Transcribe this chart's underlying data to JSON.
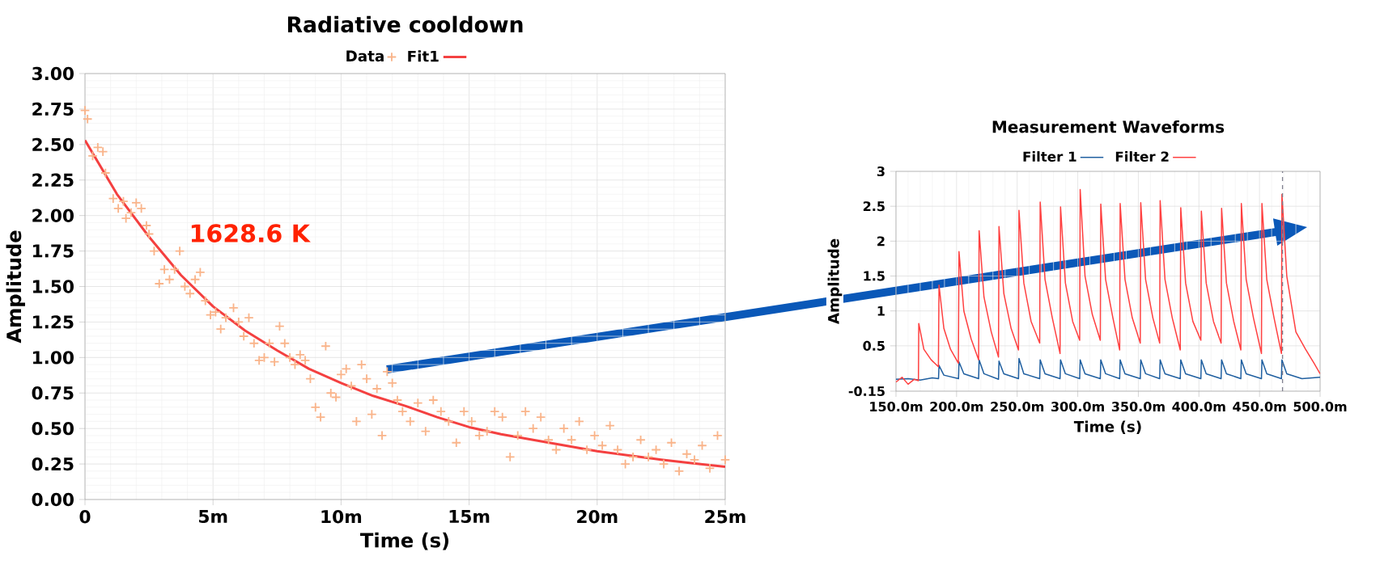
{
  "chart_data": [
    {
      "type": "line",
      "title": "Radiative cooldown",
      "xlabel": "Time (s)",
      "ylabel": "Amplitude",
      "grid": true,
      "legend": "top",
      "xlim": [
        0,
        25
      ],
      "ylim": [
        0,
        3
      ],
      "xticks": [
        0,
        {
          "value": 5,
          "label": "5m"
        },
        {
          "value": 10,
          "label": "10m"
        },
        {
          "value": 15,
          "label": "15m"
        },
        {
          "value": 20,
          "label": "20m"
        },
        {
          "value": 25,
          "label": "25m"
        }
      ],
      "yticks": [
        {
          "value": 0,
          "label": "0.00"
        },
        {
          "value": 0.25,
          "label": "0.25"
        },
        {
          "value": 0.5,
          "label": "0.50"
        },
        {
          "value": 0.75,
          "label": "0.75"
        },
        {
          "value": 1,
          "label": "1.00"
        },
        {
          "value": 1.25,
          "label": "1.25"
        },
        {
          "value": 1.5,
          "label": "1.50"
        },
        {
          "value": 1.75,
          "label": "1.75"
        },
        {
          "value": 2,
          "label": "2.00"
        },
        {
          "value": 2.25,
          "label": "2.25"
        },
        {
          "value": 2.5,
          "label": "2.50"
        },
        {
          "value": 2.75,
          "label": "2.75"
        },
        {
          "value": 3,
          "label": "3.00"
        }
      ],
      "annotations": [
        "1628.6 K"
      ],
      "series": [
        {
          "name": "Data",
          "type": "scatter",
          "marker": "cross",
          "color": "#f9b48a",
          "x": [
            0,
            0.1,
            0.3,
            0.5,
            0.7,
            0.8,
            1.1,
            1.3,
            1.5,
            1.6,
            1.8,
            2.0,
            2.2,
            2.4,
            2.5,
            2.7,
            2.9,
            3.1,
            3.3,
            3.5,
            3.7,
            3.9,
            4.1,
            4.3,
            4.5,
            4.7,
            4.9,
            5.1,
            5.3,
            5.5,
            5.8,
            6.0,
            6.2,
            6.4,
            6.6,
            6.8,
            7.0,
            7.2,
            7.4,
            7.6,
            7.8,
            8.0,
            8.2,
            8.4,
            8.6,
            8.8,
            9.0,
            9.2,
            9.4,
            9.6,
            9.8,
            10.0,
            10.2,
            10.4,
            10.6,
            10.8,
            11.0,
            11.2,
            11.4,
            11.6,
            11.8,
            12.0,
            12.2,
            12.4,
            12.7,
            13.0,
            13.3,
            13.6,
            13.9,
            14.2,
            14.5,
            14.8,
            15.1,
            15.4,
            15.7,
            16.0,
            16.3,
            16.6,
            16.9,
            17.2,
            17.5,
            17.8,
            18.1,
            18.4,
            18.7,
            19.0,
            19.3,
            19.6,
            19.9,
            20.2,
            20.5,
            20.8,
            21.1,
            21.4,
            21.7,
            22.0,
            22.3,
            22.6,
            22.9,
            23.2,
            23.5,
            23.8,
            24.1,
            24.4,
            24.7,
            25.0
          ],
          "values": [
            2.74,
            2.68,
            2.42,
            2.48,
            2.45,
            2.3,
            2.12,
            2.05,
            2.1,
            1.98,
            2.02,
            2.09,
            2.05,
            1.93,
            1.87,
            1.75,
            1.52,
            1.62,
            1.55,
            1.62,
            1.75,
            1.5,
            1.45,
            1.55,
            1.6,
            1.4,
            1.3,
            1.32,
            1.2,
            1.28,
            1.35,
            1.25,
            1.15,
            1.28,
            1.1,
            0.98,
            1.0,
            1.1,
            0.97,
            1.22,
            1.1,
            1.0,
            0.95,
            1.02,
            0.98,
            0.85,
            0.65,
            0.58,
            1.08,
            0.75,
            0.72,
            0.88,
            0.92,
            0.8,
            0.55,
            0.95,
            0.85,
            0.6,
            0.78,
            0.45,
            0.9,
            0.82,
            0.7,
            0.62,
            0.55,
            0.68,
            0.48,
            0.7,
            0.62,
            0.55,
            0.4,
            0.62,
            0.55,
            0.45,
            0.48,
            0.62,
            0.58,
            0.3,
            0.45,
            0.62,
            0.5,
            0.58,
            0.42,
            0.35,
            0.5,
            0.42,
            0.55,
            0.35,
            0.45,
            0.38,
            0.52,
            0.35,
            0.25,
            0.3,
            0.42,
            0.3,
            0.35,
            0.25,
            0.4,
            0.2,
            0.32,
            0.28,
            0.38,
            0.22,
            0.45,
            0.28
          ]
        },
        {
          "name": "Fit1",
          "type": "line",
          "color": "#f44040",
          "x": [
            0,
            1.25,
            2.5,
            3.75,
            5,
            6.25,
            7.5,
            8.75,
            10,
            11.25,
            12.5,
            13.75,
            15,
            16.25,
            17.5,
            18.75,
            20,
            21.25,
            22.5,
            23.75,
            25
          ],
          "values": [
            2.53,
            2.15,
            1.85,
            1.58,
            1.36,
            1.19,
            1.05,
            0.92,
            0.82,
            0.73,
            0.66,
            0.58,
            0.51,
            0.46,
            0.42,
            0.38,
            0.34,
            0.31,
            0.28,
            0.255,
            0.23
          ]
        }
      ]
    },
    {
      "type": "line",
      "title": "Measurement Waveforms",
      "xlabel": "Time (s)",
      "ylabel": "Amplitude",
      "grid": true,
      "legend": "top",
      "xlim": [
        150,
        500
      ],
      "ylim": [
        -0.15,
        3
      ],
      "xticks": [
        {
          "value": 150,
          "label": "150.0m"
        },
        {
          "value": 200,
          "label": "200.0m"
        },
        {
          "value": 250,
          "label": "250.0m"
        },
        {
          "value": 300,
          "label": "300.0m"
        },
        {
          "value": 350,
          "label": "350.0m"
        },
        {
          "value": 400,
          "label": "400.0m"
        },
        {
          "value": 450,
          "label": "450.0m"
        },
        {
          "value": 500,
          "label": "500.0m"
        }
      ],
      "yticks": [
        -0.15,
        0.5,
        1,
        1.5,
        2,
        2.5,
        3
      ],
      "ref_lines": [
        {
          "axis": "x",
          "value": 469,
          "color": "#808090",
          "line_style": "dashed"
        }
      ],
      "series": [
        {
          "name": "Filter 1",
          "color": "#1f5fa0",
          "x": [
            150,
            160,
            170,
            180,
            185.1,
            185.5,
            189.5,
            201.6,
            202.0,
            206.0,
            218.2,
            218.6,
            222.6,
            234.6,
            235.0,
            239.0,
            251.1,
            251.5,
            255.5,
            268.6,
            269.0,
            273.0,
            285.4,
            285.8,
            289.8,
            301.6,
            302.0,
            306.0,
            318.6,
            319.0,
            323.0,
            334.6,
            335.0,
            339.0,
            351.6,
            352.0,
            356.0,
            367.6,
            368.0,
            372.0,
            384.6,
            385.0,
            389.0,
            401.6,
            402.0,
            406.0,
            418.3,
            418.7,
            422.7,
            434.6,
            435.0,
            439.0,
            451.6,
            452.0,
            456.0,
            468.1,
            468.5,
            472.5,
            485,
            500
          ],
          "values": [
            0.02,
            0.03,
            0.01,
            0.04,
            0.03,
            0.22,
            0.08,
            0.03,
            0.27,
            0.1,
            0.03,
            0.3,
            0.1,
            0.02,
            0.28,
            0.1,
            0.03,
            0.32,
            0.1,
            0.03,
            0.3,
            0.1,
            0.03,
            0.3,
            0.1,
            0.03,
            0.3,
            0.1,
            0.03,
            0.3,
            0.1,
            0.03,
            0.3,
            0.1,
            0.03,
            0.3,
            0.1,
            0.03,
            0.3,
            0.1,
            0.03,
            0.3,
            0.1,
            0.03,
            0.3,
            0.1,
            0.03,
            0.3,
            0.1,
            0.03,
            0.3,
            0.1,
            0.03,
            0.3,
            0.1,
            0.03,
            0.3,
            0.1,
            0.03,
            0.05
          ]
        },
        {
          "name": "Filter 2",
          "color": "#ff4040",
          "x": [
            150,
            155,
            160,
            165,
            168.5,
            168.8,
            173,
            179,
            185,
            185.5,
            189.5,
            195,
            201.5,
            202,
            206,
            212,
            218.2,
            218.6,
            222.6,
            228.6,
            234.6,
            235,
            239,
            245,
            251.1,
            251.5,
            255.5,
            261.5,
            268.6,
            269,
            273,
            279,
            285.4,
            285.8,
            289.8,
            295.8,
            301.6,
            302,
            306,
            312,
            318.6,
            319,
            323,
            329,
            334.6,
            335,
            339,
            345,
            351.6,
            352,
            356,
            362,
            367.6,
            368,
            372,
            378,
            384.6,
            385,
            389,
            395,
            401.6,
            402,
            406,
            412,
            418.3,
            418.7,
            422.7,
            428.7,
            434.6,
            435,
            439,
            445,
            451.6,
            452,
            456,
            462,
            468.1,
            468.5,
            472.5,
            480,
            488,
            495,
            500
          ],
          "values": [
            -0.02,
            0.05,
            -0.05,
            0.02,
            0.0,
            0.82,
            0.45,
            0.3,
            0.2,
            1.37,
            0.75,
            0.45,
            0.25,
            1.85,
            1.0,
            0.6,
            0.3,
            2.15,
            1.2,
            0.7,
            0.34,
            2.21,
            1.25,
            0.75,
            0.44,
            2.44,
            1.4,
            0.85,
            0.54,
            2.56,
            1.45,
            0.9,
            0.39,
            2.49,
            1.4,
            0.85,
            0.58,
            2.74,
            1.5,
            0.95,
            0.58,
            2.53,
            1.45,
            0.9,
            0.44,
            2.54,
            1.45,
            0.9,
            0.54,
            2.55,
            1.45,
            0.9,
            0.54,
            2.58,
            1.45,
            0.9,
            0.44,
            2.48,
            1.4,
            0.85,
            0.58,
            2.43,
            1.4,
            0.85,
            0.54,
            2.47,
            1.4,
            0.85,
            0.44,
            2.54,
            1.45,
            0.9,
            0.39,
            2.54,
            1.45,
            0.9,
            0.39,
            2.67,
            1.5,
            0.7,
            0.45,
            0.25,
            0.1
          ]
        }
      ]
    }
  ]
}
